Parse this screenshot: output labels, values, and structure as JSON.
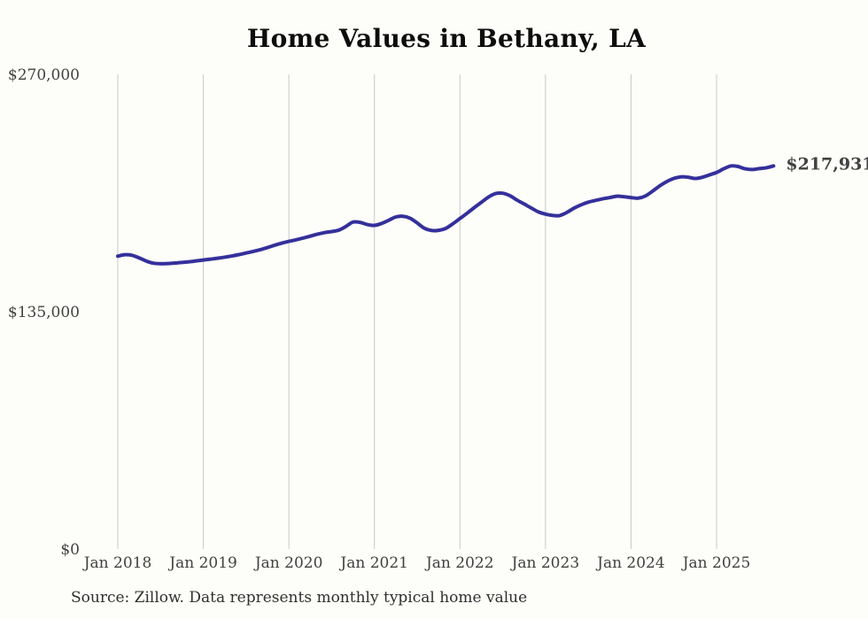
{
  "chart_data": {
    "type": "line",
    "title": "Home Values in Bethany, LA",
    "source": "Source: Zillow. Data represents monthly typical home value",
    "end_label": "$217,931",
    "latest_value": 217931,
    "x_tick_labels": [
      "Jan 2018",
      "Jan 2019",
      "Jan 2020",
      "Jan 2021",
      "Jan 2022",
      "Jan 2023",
      "Jan 2024",
      "Jan 2025"
    ],
    "y_ticks": [
      {
        "label": "$0",
        "value": 0
      },
      {
        "label": "$135,000",
        "value": 135000
      },
      {
        "label": "$270,000",
        "value": 270000
      }
    ],
    "ylim": [
      0,
      270000
    ],
    "grid": "vertical-only",
    "legend": "none",
    "series": [
      {
        "name": "Monthly typical home value",
        "start_month": "2018-01",
        "end_month": "2025-09",
        "values": [
          166600,
          167400,
          167100,
          165600,
          163800,
          162600,
          162300,
          162400,
          162700,
          163000,
          163400,
          163900,
          164400,
          164900,
          165400,
          166000,
          166700,
          167500,
          168400,
          169300,
          170300,
          171500,
          172800,
          174000,
          175000,
          175900,
          176900,
          178000,
          179100,
          180000,
          180600,
          181400,
          183500,
          186000,
          185800,
          184600,
          184100,
          185200,
          187000,
          188900,
          189300,
          188200,
          185500,
          182500,
          181200,
          181300,
          182400,
          185000,
          188000,
          191000,
          194200,
          197200,
          200200,
          202200,
          202400,
          201000,
          198500,
          196300,
          194000,
          191800,
          190500,
          189800,
          189700,
          191500,
          193900,
          195800,
          197300,
          198300,
          199200,
          199900,
          200700,
          200400,
          199900,
          199600,
          200800,
          203500,
          206500,
          209000,
          210800,
          211700,
          211500,
          210800,
          211500,
          212800,
          214200,
          216300,
          217900,
          217600,
          216300,
          215900,
          216400,
          216900,
          217931
        ]
      }
    ]
  },
  "colors": {
    "line": "#34309b",
    "end_label": "#2d2a96",
    "grid": "#c9c9c9",
    "title": "#0d0d0d",
    "axis_text": "#414141",
    "source_text": "#2f2f2f",
    "background": "#fdfdf9"
  }
}
